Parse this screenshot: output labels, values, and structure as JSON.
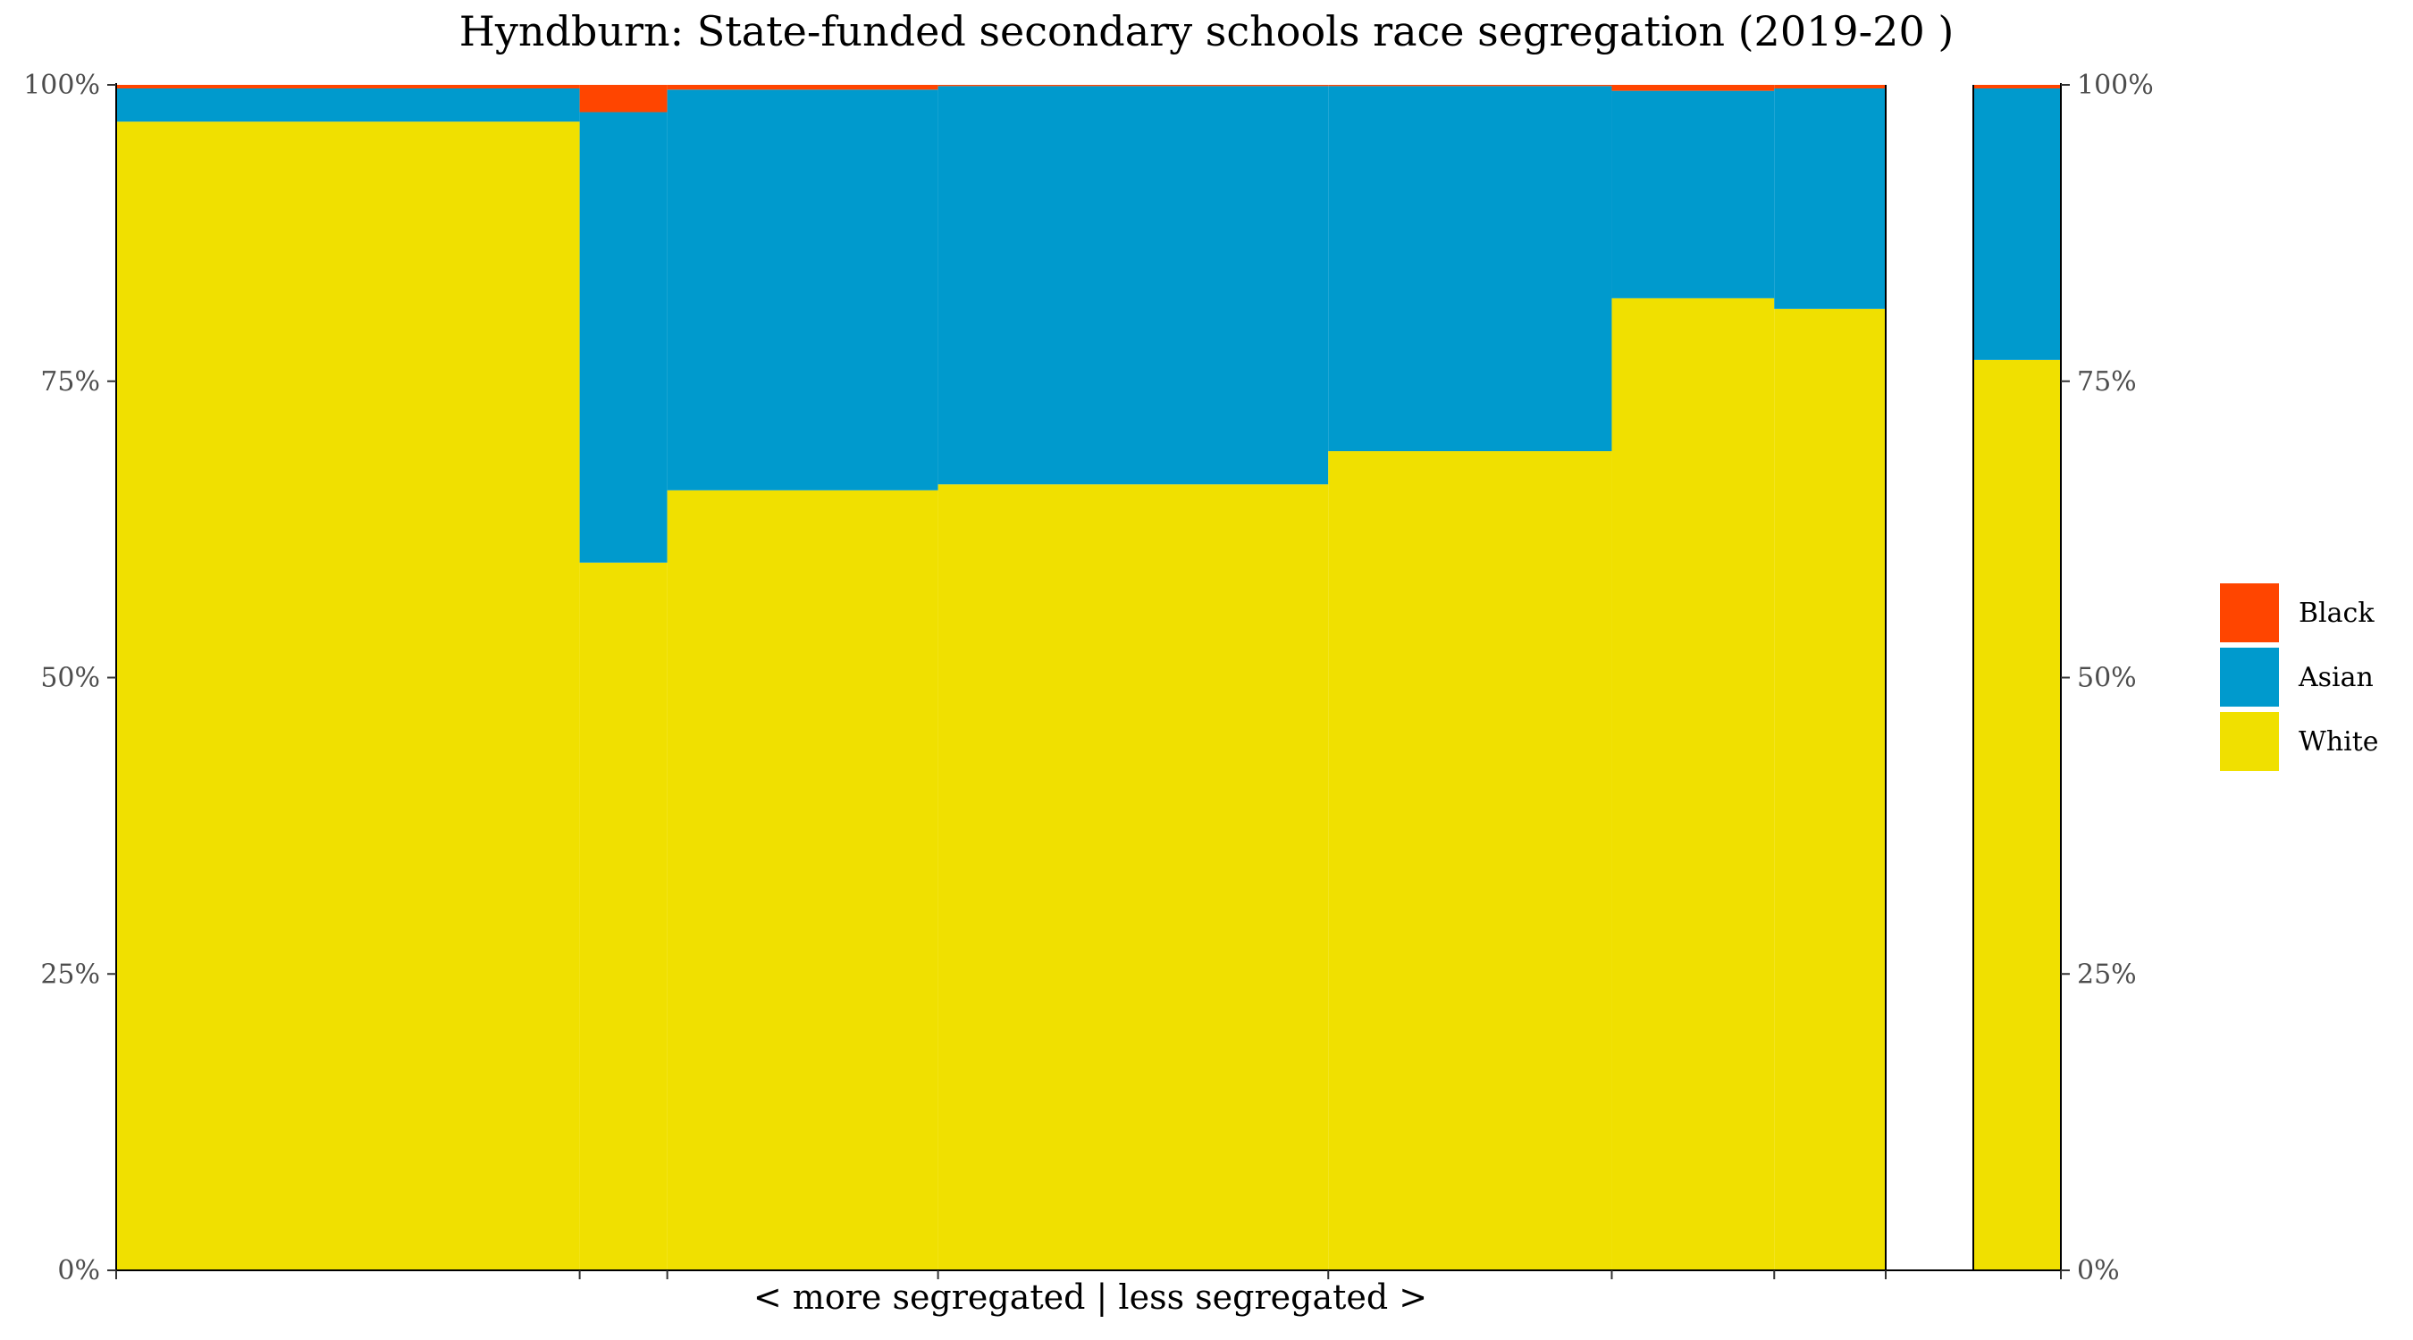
{
  "chart_data": {
    "type": "bar",
    "subtype": "stacked-variable-width",
    "title": "Hyndburn: State-funded secondary schools race segregation (2019-20 )",
    "xlabel": "< more segregated | less segregated >",
    "ylabel": "",
    "ylim": [
      0,
      100
    ],
    "y_ticks": [
      "0%",
      "25%",
      "50%",
      "75%",
      "100%"
    ],
    "y_tick_values": [
      0,
      25,
      50,
      75,
      100
    ],
    "legend_position": "right",
    "colors": {
      "Black": "#FF4500",
      "Asian": "#009ACD",
      "White": "#F0E000"
    },
    "series_order": [
      "Black",
      "Asian",
      "White"
    ],
    "schools": [
      {
        "width": 29.1,
        "White": 96.9,
        "Asian": 2.8,
        "Black": 0.3
      },
      {
        "width": 5.5,
        "White": 59.7,
        "Asian": 38.0,
        "Black": 2.3
      },
      {
        "width": 17.0,
        "White": 65.8,
        "Asian": 33.8,
        "Black": 0.4
      },
      {
        "width": 24.5,
        "White": 66.3,
        "Asian": 33.6,
        "Black": 0.1
      },
      {
        "width": 17.8,
        "White": 69.1,
        "Asian": 30.8,
        "Black": 0.1
      },
      {
        "width": 10.2,
        "White": 82.0,
        "Asian": 17.5,
        "Black": 0.5
      },
      {
        "width": 7.0,
        "White": 81.1,
        "Asian": 18.6,
        "Black": 0.3
      }
    ],
    "overall": {
      "White": 76.8,
      "Asian": 22.9,
      "Black": 0.3
    },
    "legend": [
      "Black",
      "Asian",
      "White"
    ]
  }
}
